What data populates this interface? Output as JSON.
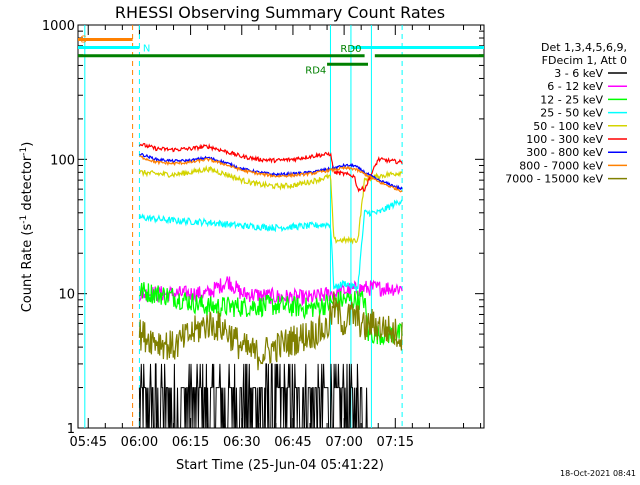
{
  "chart_data": {
    "type": "line",
    "title": "RHESSI Observing Summary Count Rates",
    "xlabel": "Start Time (25-Jun-04 05:41:22)",
    "ylabel_parts": [
      "Count Rate (s",
      "-1",
      " detector",
      "-1",
      ")"
    ],
    "yscale": "log",
    "ylim": [
      1,
      1000
    ],
    "y_ticks": [
      {
        "value": 1,
        "label": "1"
      },
      {
        "value": 10,
        "label": "10"
      },
      {
        "value": 100,
        "label": "100"
      },
      {
        "value": 1000,
        "label": "1000"
      }
    ],
    "x_range_minutes": [
      -18,
      101
    ],
    "x_ticks": [
      {
        "t": -15,
        "label": "05:45"
      },
      {
        "t": 0,
        "label": "06:00"
      },
      {
        "t": 15,
        "label": "06:15"
      },
      {
        "t": 30,
        "label": "06:30"
      },
      {
        "t": 45,
        "label": "06:45"
      },
      {
        "t": 60,
        "label": "07:00"
      },
      {
        "t": 75,
        "label": "07:15"
      }
    ],
    "legend": {
      "header": [
        "Det 1,3,4,5,6,9,",
        "FDecim 1, Att 0"
      ],
      "placement": "top-right outside"
    },
    "series": [
      {
        "name": "3 - 6 keV",
        "color": "#000000",
        "x": [
          0,
          8,
          16,
          22,
          30,
          40,
          48,
          52,
          58,
          60,
          64,
          66,
          68
        ],
        "y": [
          2.0,
          2.0,
          2.0,
          2.0,
          2.0,
          2.0,
          2.0,
          2.5,
          3.0,
          3.0,
          2.5,
          2.0,
          1.0
        ]
      },
      {
        "name": "6 - 12 keV",
        "color": "#ff00ff",
        "x": [
          0,
          10,
          20,
          26,
          30,
          40,
          50,
          56,
          60,
          66,
          70,
          77
        ],
        "y": [
          10,
          10,
          10,
          12.5,
          10,
          9.5,
          9.3,
          10,
          10.5,
          11,
          11,
          11
        ]
      },
      {
        "name": "12 - 25 keV",
        "color": "#00ff00",
        "x": [
          0,
          10,
          20,
          30,
          40,
          50,
          56,
          60,
          66,
          67,
          77
        ],
        "y": [
          10.5,
          9.5,
          8,
          8,
          8.2,
          7.8,
          8.5,
          9,
          9,
          5,
          5
        ]
      },
      {
        "name": "25 - 50 keV",
        "color": "#00ffff",
        "x": [
          0,
          10,
          20,
          30,
          40,
          50,
          56,
          57,
          60,
          64,
          66,
          70,
          77
        ],
        "y": [
          37,
          35,
          34,
          32,
          31,
          32,
          33,
          11,
          12,
          11,
          40,
          40,
          50
        ]
      },
      {
        "name": "50 - 100 keV",
        "color": "#d4d400",
        "x": [
          0,
          5,
          10,
          15,
          20,
          25,
          30,
          35,
          40,
          45,
          50,
          56,
          57,
          60,
          64,
          66,
          70,
          77
        ],
        "y": [
          80,
          78,
          77,
          80,
          85,
          78,
          70,
          65,
          63,
          64,
          68,
          75,
          25,
          25,
          25,
          70,
          75,
          80
        ]
      },
      {
        "name": "100 - 300 keV",
        "color": "#ff0000",
        "x": [
          0,
          5,
          10,
          15,
          20,
          25,
          30,
          35,
          40,
          45,
          50,
          56,
          57,
          60,
          63,
          64,
          66,
          70,
          77
        ],
        "y": [
          130,
          120,
          118,
          120,
          125,
          115,
          105,
          100,
          98,
          100,
          105,
          110,
          80,
          78,
          75,
          60,
          60,
          100,
          95
        ]
      },
      {
        "name": "300 - 800 keV",
        "color": "#0000ff",
        "x": [
          0,
          5,
          10,
          15,
          20,
          25,
          30,
          35,
          40,
          45,
          50,
          56,
          60,
          63,
          66,
          70,
          77
        ],
        "y": [
          110,
          100,
          97,
          98,
          103,
          95,
          85,
          80,
          77,
          78,
          80,
          85,
          90,
          90,
          80,
          70,
          60
        ]
      },
      {
        "name": "800 - 7000 keV",
        "color": "#ff8000",
        "x": [
          0,
          5,
          10,
          15,
          20,
          25,
          30,
          35,
          40,
          45,
          50,
          56,
          60,
          63,
          66,
          70,
          77
        ],
        "y": [
          105,
          95,
          93,
          95,
          100,
          92,
          83,
          78,
          75,
          76,
          78,
          83,
          86,
          85,
          78,
          68,
          58
        ]
      },
      {
        "name": "7000 - 15000 keV",
        "color": "#808000",
        "x": [
          0,
          5,
          10,
          15,
          20,
          25,
          30,
          35,
          40,
          45,
          50,
          55,
          57,
          60,
          62,
          64,
          66,
          68,
          72,
          77
        ],
        "y": [
          5,
          4.5,
          4,
          5,
          6,
          5.5,
          4,
          3.5,
          4,
          4.5,
          5,
          5.5,
          8,
          6,
          7,
          6.5,
          5.5,
          6,
          5.5,
          4.8
        ]
      }
    ],
    "indicators": [
      {
        "label": "S",
        "color": "#ff8000",
        "segments": [
          [
            -18,
            -2
          ]
        ],
        "y": 780
      },
      {
        "label": "N",
        "color": "#00ffff",
        "segments": [
          [
            -18,
            0
          ],
          [
            62,
            101
          ]
        ],
        "y": 680
      },
      {
        "label": "",
        "color": "#008000",
        "segments": [
          [
            -18,
            66
          ],
          [
            69,
            101
          ]
        ],
        "y": 590
      },
      {
        "label": "RD0",
        "color": "#00ffff",
        "segments": [],
        "y": 590
      },
      {
        "label": "RD4",
        "color": "#008000",
        "segments": [
          [
            55,
            67
          ]
        ],
        "y": 510
      }
    ],
    "vlines": [
      {
        "t": -16,
        "color": "#00ffff",
        "style": "solid"
      },
      {
        "t": -2,
        "color": "#ff8000",
        "style": "dashed"
      },
      {
        "t": 0,
        "color": "#00ffff",
        "style": "dashed"
      },
      {
        "t": 56,
        "color": "#00ffff",
        "style": "solid"
      },
      {
        "t": 62,
        "color": "#00ffff",
        "style": "solid"
      },
      {
        "t": 68,
        "color": "#00ffff",
        "style": "solid"
      },
      {
        "t": 77,
        "color": "#00ffff",
        "style": "dashed"
      }
    ]
  },
  "footer": {
    "timestamp": "18-Oct-2021 08:41"
  },
  "colors": {
    "background": "#ffffff",
    "axis": "#000000"
  }
}
